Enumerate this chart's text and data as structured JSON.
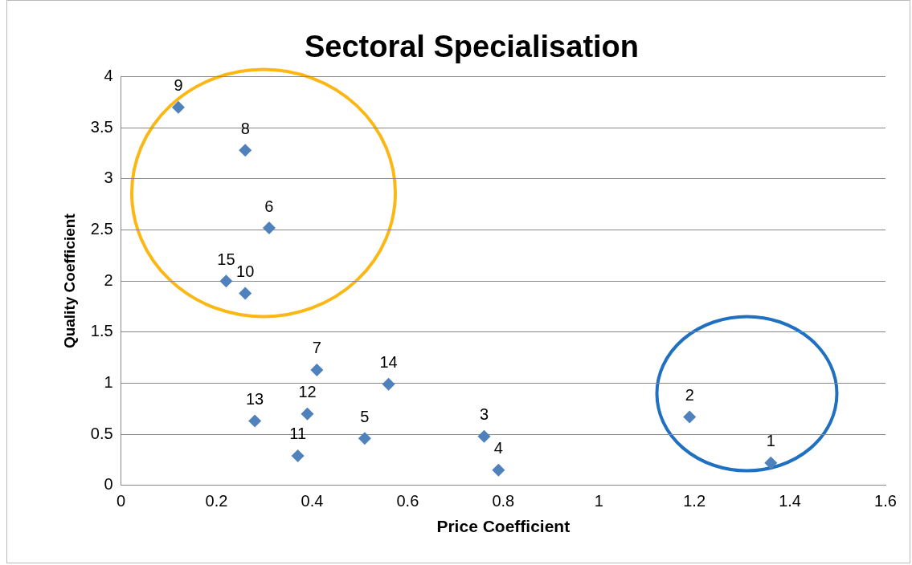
{
  "chart_data": {
    "type": "scatter",
    "title": "Sectoral Specialisation",
    "xlabel": "Price Coefficient",
    "ylabel": "Quality Coefficient",
    "series": [
      {
        "color": "#4f81bd",
        "x": [
          1.36,
          1.19,
          0.76,
          0.79,
          0.51,
          0.31,
          0.41,
          0.26,
          0.12,
          0.26,
          0.37,
          0.39,
          0.28,
          0.56,
          0.22
        ],
        "values": [
          0.22,
          0.67,
          0.48,
          0.15,
          0.46,
          2.52,
          1.13,
          3.28,
          3.7,
          1.88,
          0.29,
          0.7,
          0.63,
          0.99,
          2.0
        ]
      }
    ],
    "annotations": [
      {
        "text": "1",
        "x": 1.36,
        "y": 0.22
      },
      {
        "text": "2",
        "x": 1.19,
        "y": 0.67
      },
      {
        "text": "3",
        "x": 0.76,
        "y": 0.48
      },
      {
        "text": "4",
        "x": 0.79,
        "y": 0.15
      },
      {
        "text": "5",
        "x": 0.51,
        "y": 0.46
      },
      {
        "text": "6",
        "x": 0.31,
        "y": 2.52
      },
      {
        "text": "7",
        "x": 0.41,
        "y": 1.13
      },
      {
        "text": "8",
        "x": 0.26,
        "y": 3.28
      },
      {
        "text": "9",
        "x": 0.12,
        "y": 3.7
      },
      {
        "text": "10",
        "x": 0.26,
        "y": 1.88
      },
      {
        "text": "11",
        "x": 0.37,
        "y": 0.29
      },
      {
        "text": "12",
        "x": 0.39,
        "y": 0.7
      },
      {
        "text": "13",
        "x": 0.28,
        "y": 0.63
      },
      {
        "text": "14",
        "x": 0.56,
        "y": 0.99
      },
      {
        "text": "15",
        "x": 0.22,
        "y": 2.0
      }
    ],
    "xlim": [
      0,
      1.6
    ],
    "xticks": [
      0,
      0.2,
      0.4,
      0.6,
      0.8,
      1,
      1.2,
      1.4,
      1.6
    ],
    "ylim": [
      0,
      4
    ],
    "yticks": [
      0,
      0.5,
      1,
      1.5,
      2,
      2.5,
      3,
      3.5,
      4
    ],
    "grid": "y",
    "legend": false,
    "marker": "diamond"
  }
}
